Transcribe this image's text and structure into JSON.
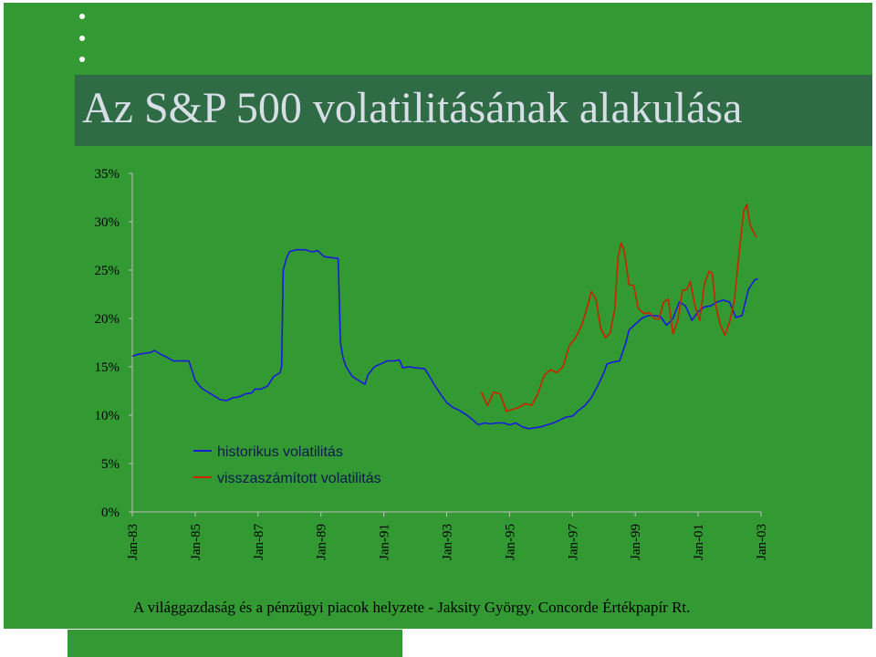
{
  "title": "Az S&P 500 volatilitásának alakulása",
  "footer": "A világgazdaság és a pénzügyi piacok helyzete - Jaksity György, Concorde Értékpapír Rt.",
  "colors": {
    "background": "#339933",
    "title_band": "#2f6b45",
    "historical": "#1a1adb",
    "implied": "#cc2200"
  },
  "chart_data": {
    "type": "line",
    "title": "",
    "xlabel": "",
    "ylabel": "",
    "x_range": [
      1983.0,
      2003.0
    ],
    "ylim": [
      0,
      35
    ],
    "y_ticks": [
      "0%",
      "5%",
      "10%",
      "15%",
      "20%",
      "25%",
      "30%",
      "35%"
    ],
    "y_tick_values": [
      0,
      5,
      10,
      15,
      20,
      25,
      30,
      35
    ],
    "x_ticks": [
      "Jan-83",
      "Jan-85",
      "Jan-87",
      "Jan-89",
      "Jan-91",
      "Jan-93",
      "Jan-95",
      "Jan-97",
      "Jan-99",
      "Jan-01",
      "Jan-03"
    ],
    "x_tick_values": [
      1983,
      1985,
      1987,
      1989,
      1991,
      1993,
      1995,
      1997,
      1999,
      2001,
      2003
    ],
    "grid": false,
    "legend_position": "bottom-left",
    "series": [
      {
        "name": "historikus volatilitás",
        "color": "#1a1adb",
        "points": [
          [
            1983.0,
            16.1
          ],
          [
            1983.2,
            16.3
          ],
          [
            1983.4,
            16.4
          ],
          [
            1983.6,
            16.5
          ],
          [
            1983.7,
            16.7
          ],
          [
            1983.9,
            16.3
          ],
          [
            1984.1,
            16.0
          ],
          [
            1984.3,
            15.6
          ],
          [
            1984.6,
            15.6
          ],
          [
            1984.8,
            15.6
          ],
          [
            1984.9,
            14.6
          ],
          [
            1985.0,
            13.6
          ],
          [
            1985.2,
            12.8
          ],
          [
            1985.4,
            12.4
          ],
          [
            1985.6,
            12.0
          ],
          [
            1985.8,
            11.6
          ],
          [
            1986.0,
            11.5
          ],
          [
            1986.2,
            11.8
          ],
          [
            1986.4,
            11.9
          ],
          [
            1986.6,
            12.2
          ],
          [
            1986.8,
            12.3
          ],
          [
            1986.9,
            12.7
          ],
          [
            1987.1,
            12.7
          ],
          [
            1987.3,
            13.0
          ],
          [
            1987.5,
            14.0
          ],
          [
            1987.7,
            14.4
          ],
          [
            1987.75,
            15.0
          ],
          [
            1987.8,
            25.0
          ],
          [
            1987.9,
            26.2
          ],
          [
            1988.0,
            26.9
          ],
          [
            1988.2,
            27.1
          ],
          [
            1988.5,
            27.1
          ],
          [
            1988.7,
            26.9
          ],
          [
            1988.9,
            27.0
          ],
          [
            1989.1,
            26.4
          ],
          [
            1989.3,
            26.3
          ],
          [
            1989.55,
            26.2
          ],
          [
            1989.62,
            17.5
          ],
          [
            1989.7,
            16.0
          ],
          [
            1989.8,
            15.0
          ],
          [
            1990.0,
            14.0
          ],
          [
            1990.2,
            13.6
          ],
          [
            1990.4,
            13.2
          ],
          [
            1990.5,
            14.2
          ],
          [
            1990.7,
            15.0
          ],
          [
            1990.9,
            15.3
          ],
          [
            1991.1,
            15.6
          ],
          [
            1991.3,
            15.6
          ],
          [
            1991.5,
            15.7
          ],
          [
            1991.6,
            14.9
          ],
          [
            1991.8,
            15.0
          ],
          [
            1992.0,
            14.9
          ],
          [
            1992.3,
            14.8
          ],
          [
            1992.4,
            14.3
          ],
          [
            1992.6,
            13.2
          ],
          [
            1992.8,
            12.2
          ],
          [
            1993.0,
            11.3
          ],
          [
            1993.2,
            10.8
          ],
          [
            1993.4,
            10.5
          ],
          [
            1993.6,
            10.1
          ],
          [
            1993.8,
            9.6
          ],
          [
            1994.0,
            9.0
          ],
          [
            1994.2,
            9.2
          ],
          [
            1994.4,
            9.1
          ],
          [
            1994.6,
            9.2
          ],
          [
            1994.8,
            9.2
          ],
          [
            1995.0,
            9.0
          ],
          [
            1995.2,
            9.2
          ],
          [
            1995.4,
            8.8
          ],
          [
            1995.6,
            8.6
          ],
          [
            1995.8,
            8.7
          ],
          [
            1996.0,
            8.8
          ],
          [
            1996.2,
            9.0
          ],
          [
            1996.4,
            9.2
          ],
          [
            1996.6,
            9.5
          ],
          [
            1996.8,
            9.8
          ],
          [
            1997.0,
            9.9
          ],
          [
            1997.2,
            10.5
          ],
          [
            1997.4,
            11.0
          ],
          [
            1997.6,
            11.8
          ],
          [
            1997.8,
            13.0
          ],
          [
            1998.0,
            14.4
          ],
          [
            1998.1,
            15.3
          ],
          [
            1998.3,
            15.5
          ],
          [
            1998.5,
            15.6
          ],
          [
            1998.7,
            17.5
          ],
          [
            1998.8,
            18.8
          ],
          [
            1999.0,
            19.4
          ],
          [
            1999.2,
            20.0
          ],
          [
            1999.4,
            20.3
          ],
          [
            1999.6,
            20.3
          ],
          [
            1999.8,
            20.2
          ],
          [
            2000.0,
            19.3
          ],
          [
            2000.2,
            20.0
          ],
          [
            2000.4,
            21.7
          ],
          [
            2000.6,
            21.3
          ],
          [
            2000.8,
            19.8
          ],
          [
            2001.0,
            20.7
          ],
          [
            2001.2,
            21.2
          ],
          [
            2001.4,
            21.3
          ],
          [
            2001.6,
            21.7
          ],
          [
            2001.8,
            21.9
          ],
          [
            2002.0,
            21.7
          ],
          [
            2002.2,
            20.1
          ],
          [
            2002.4,
            20.3
          ],
          [
            2002.6,
            23.0
          ],
          [
            2002.8,
            24.0
          ],
          [
            2002.9,
            24.1
          ]
        ]
      },
      {
        "name": "visszaszámított volatilitás",
        "color": "#cc2200",
        "points": [
          [
            1994.1,
            12.4
          ],
          [
            1994.3,
            11.0
          ],
          [
            1994.5,
            12.4
          ],
          [
            1994.7,
            12.2
          ],
          [
            1994.9,
            10.4
          ],
          [
            1995.1,
            10.6
          ],
          [
            1995.3,
            10.8
          ],
          [
            1995.5,
            11.2
          ],
          [
            1995.7,
            11.0
          ],
          [
            1995.9,
            12.2
          ],
          [
            1996.1,
            14.1
          ],
          [
            1996.3,
            14.7
          ],
          [
            1996.5,
            14.4
          ],
          [
            1996.7,
            15.0
          ],
          [
            1996.9,
            17.2
          ],
          [
            1997.1,
            18.0
          ],
          [
            1997.3,
            19.3
          ],
          [
            1997.5,
            21.5
          ],
          [
            1997.6,
            22.8
          ],
          [
            1997.75,
            22.0
          ],
          [
            1997.9,
            19.0
          ],
          [
            1998.05,
            18.0
          ],
          [
            1998.2,
            18.5
          ],
          [
            1998.35,
            21.0
          ],
          [
            1998.45,
            26.3
          ],
          [
            1998.55,
            27.8
          ],
          [
            1998.65,
            27.0
          ],
          [
            1998.8,
            23.5
          ],
          [
            1998.95,
            23.4
          ],
          [
            1999.1,
            21.0
          ],
          [
            1999.3,
            20.5
          ],
          [
            1999.45,
            20.6
          ],
          [
            1999.6,
            20.0
          ],
          [
            1999.75,
            19.9
          ],
          [
            1999.9,
            21.7
          ],
          [
            2000.05,
            22.0
          ],
          [
            2000.2,
            18.4
          ],
          [
            2000.35,
            19.8
          ],
          [
            2000.5,
            22.9
          ],
          [
            2000.65,
            23.0
          ],
          [
            2000.75,
            23.8
          ],
          [
            2000.9,
            21.3
          ],
          [
            2001.05,
            19.8
          ],
          [
            2001.2,
            23.6
          ],
          [
            2001.35,
            24.9
          ],
          [
            2001.45,
            24.6
          ],
          [
            2001.55,
            21.5
          ],
          [
            2001.7,
            19.4
          ],
          [
            2001.85,
            18.3
          ],
          [
            2002.0,
            19.6
          ],
          [
            2002.15,
            21.8
          ],
          [
            2002.3,
            26.7
          ],
          [
            2002.45,
            31.1
          ],
          [
            2002.55,
            31.8
          ],
          [
            2002.65,
            29.7
          ],
          [
            2002.75,
            29.0
          ],
          [
            2002.85,
            28.4
          ]
        ]
      }
    ]
  }
}
